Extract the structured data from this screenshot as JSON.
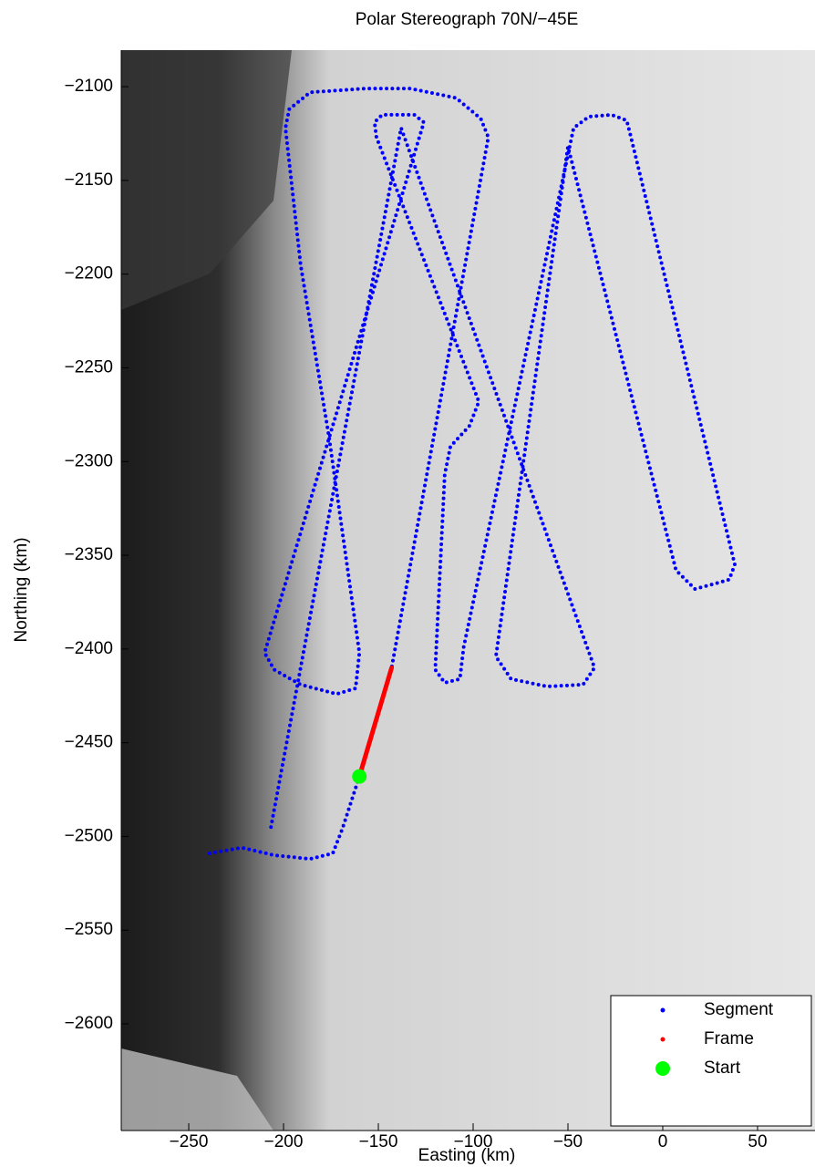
{
  "chart_data": {
    "type": "line",
    "title": "Polar Stereograph 70N/−45E",
    "x_label": "Easting (km)",
    "y_label": "Northing (km)",
    "xlim": [
      -285.6,
      80.3
    ],
    "ylim": [
      -2656.9,
      -2080.5
    ],
    "xticks": [
      {
        "value": -250,
        "label": "−250"
      },
      {
        "value": -200,
        "label": "−200"
      },
      {
        "value": -150,
        "label": "−150"
      },
      {
        "value": -100,
        "label": "−100"
      },
      {
        "value": -50,
        "label": "−50"
      },
      0,
      50
    ],
    "yticks": [
      {
        "value": -2100,
        "label": "−2100"
      },
      {
        "value": -2150,
        "label": "−2150"
      },
      {
        "value": -2200,
        "label": "−2200"
      },
      {
        "value": -2250,
        "label": "−2250"
      },
      {
        "value": -2300,
        "label": "−2300"
      },
      {
        "value": -2350,
        "label": "−2350"
      },
      {
        "value": -2400,
        "label": "−2400"
      },
      {
        "value": -2450,
        "label": "−2450"
      },
      {
        "value": -2500,
        "label": "−2500"
      },
      {
        "value": -2550,
        "label": "−2550"
      },
      {
        "value": -2600,
        "label": "−2600"
      }
    ],
    "legend": "lower right",
    "series": [
      {
        "name": "Segment",
        "color": "#0000ff",
        "style": "dotted",
        "x": [
          -239,
          -222,
          -205,
          -186,
          -174,
          -169,
          -160,
          -143,
          -92,
          -96,
          -109,
          -133,
          -157,
          -186,
          -197,
          -199,
          -191,
          -176,
          -160,
          -162,
          -172,
          -191,
          -205,
          -210,
          -126,
          -131,
          -148,
          -152,
          -151,
          -97,
          -102,
          -112,
          -115,
          -120,
          -115,
          -107,
          -105,
          -47,
          -39,
          -27,
          -19,
          -17,
          38,
          35,
          28,
          17,
          7,
          -50,
          -88,
          -80,
          -61,
          -42,
          -36,
          -138,
          -207
        ],
        "y": [
          -2509,
          -2506,
          -2510,
          -2512,
          -2509,
          -2496,
          -2468,
          -2410,
          -2127,
          -2117,
          -2106,
          -2101,
          -2101,
          -2103,
          -2112,
          -2122,
          -2195,
          -2287,
          -2402,
          -2421,
          -2424,
          -2419,
          -2411,
          -2402,
          -2119,
          -2115,
          -2115,
          -2119,
          -2127,
          -2268,
          -2281,
          -2292,
          -2307,
          -2411,
          -2418,
          -2416,
          -2399,
          -2122,
          -2116,
          -2115,
          -2118,
          -2126,
          -2355,
          -2363,
          -2365,
          -2368,
          -2358,
          -2132,
          -2404,
          -2416,
          -2420,
          -2419,
          -2410,
          -2122,
          -2497
        ]
      },
      {
        "name": "Frame",
        "color": "#ff0000",
        "style": "solid",
        "x": [
          -160,
          -143
        ],
        "y": [
          -2468,
          -2410
        ]
      },
      {
        "name": "Start",
        "color": "#00ff00",
        "style": "marker",
        "x": [
          -160
        ],
        "y": [
          -2468
        ]
      }
    ]
  }
}
